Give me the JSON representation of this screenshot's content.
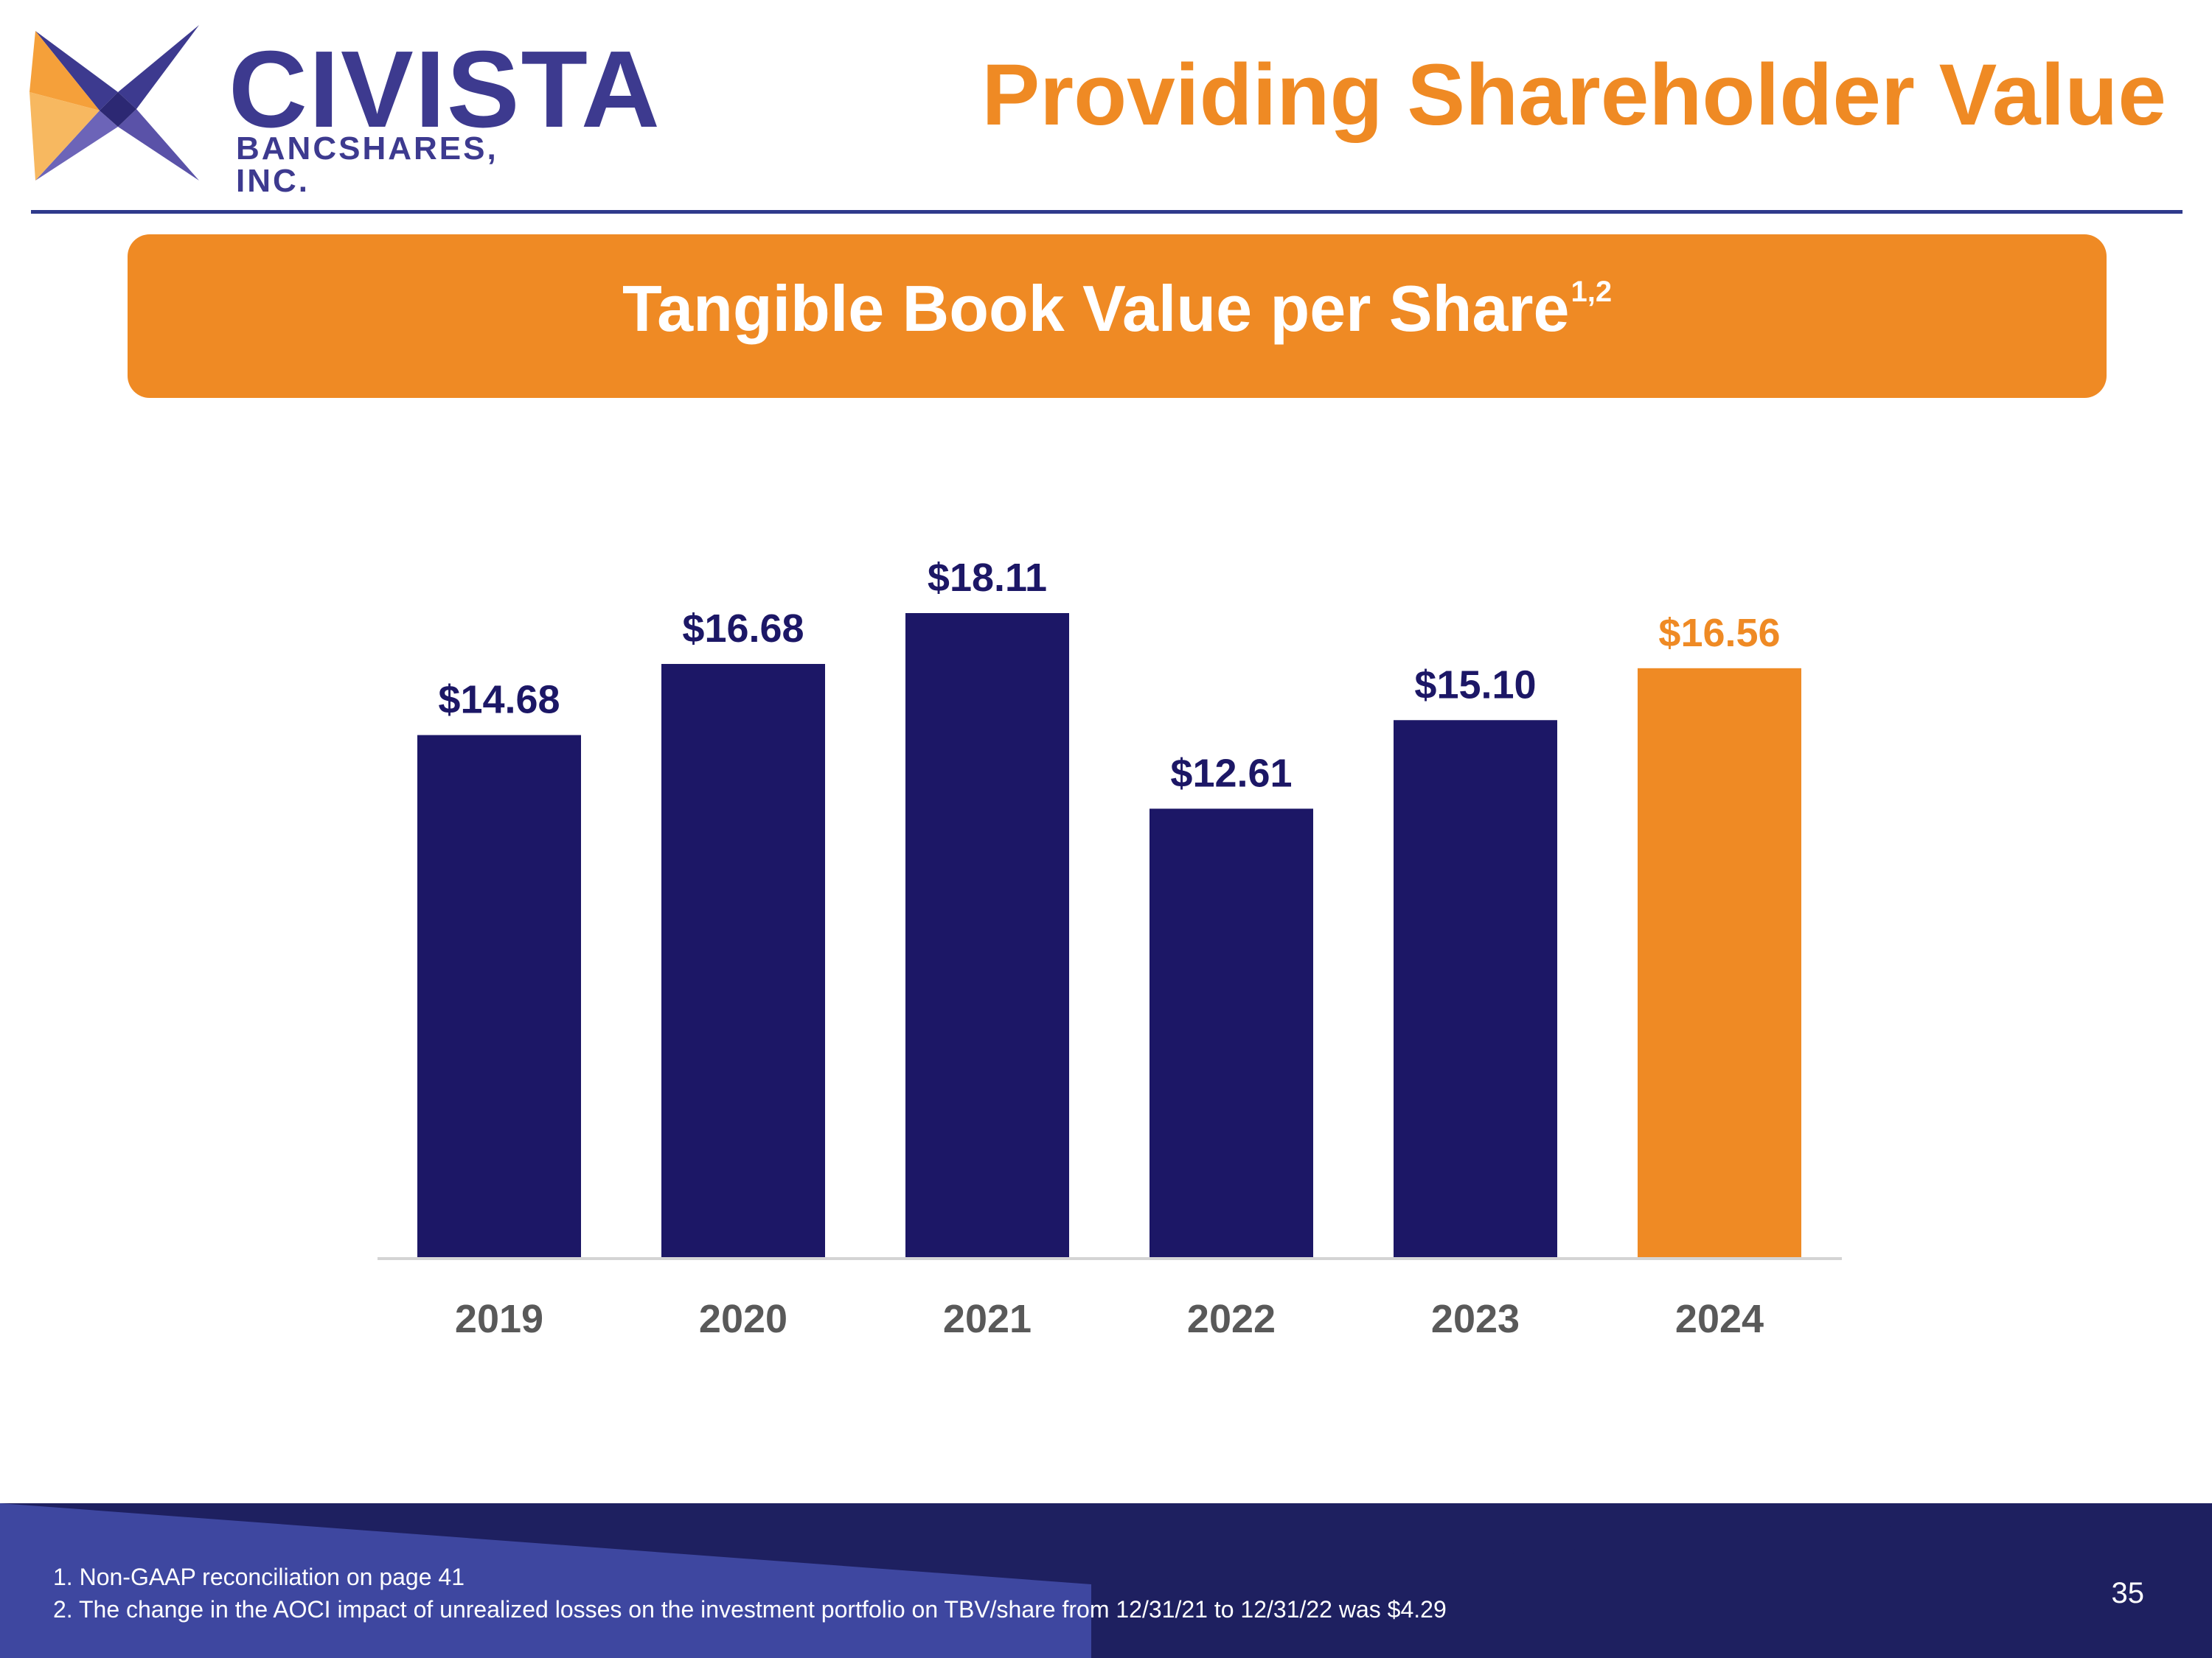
{
  "logo": {
    "brand": "CIVISTA",
    "subtitle": "BANCSHARES, INC."
  },
  "header": {
    "title": "Providing Shareholder Value"
  },
  "banner": {
    "title": "Tangible Book Value per Share",
    "superscript": "1,2"
  },
  "colors": {
    "navy": "#1c1766",
    "orange": "#ef8a24",
    "axis": "#d4d4d4",
    "tick": "#595959"
  },
  "chart_data": {
    "type": "bar",
    "title": "Tangible Book Value per Share",
    "categories": [
      "2019",
      "2020",
      "2021",
      "2022",
      "2023",
      "2024"
    ],
    "values": [
      14.68,
      16.68,
      18.11,
      12.61,
      15.1,
      16.56
    ],
    "labels": [
      "$14.68",
      "$16.68",
      "$18.11",
      "$12.61",
      "$15.10",
      "$16.56"
    ],
    "highlight": [
      "navy",
      "navy",
      "navy",
      "navy",
      "navy",
      "orange"
    ],
    "xlabel": "",
    "ylabel": "",
    "ylim": [
      0,
      18.11
    ],
    "grid": false,
    "legend": "none"
  },
  "footer": {
    "notes": [
      "1. Non-GAAP reconciliation on page 41",
      "2.  The change in the AOCI impact of unrealized losses on the investment portfolio on TBV/share from 12/31/21 to 12/31/22 was $4.29"
    ],
    "page_number": "35"
  }
}
